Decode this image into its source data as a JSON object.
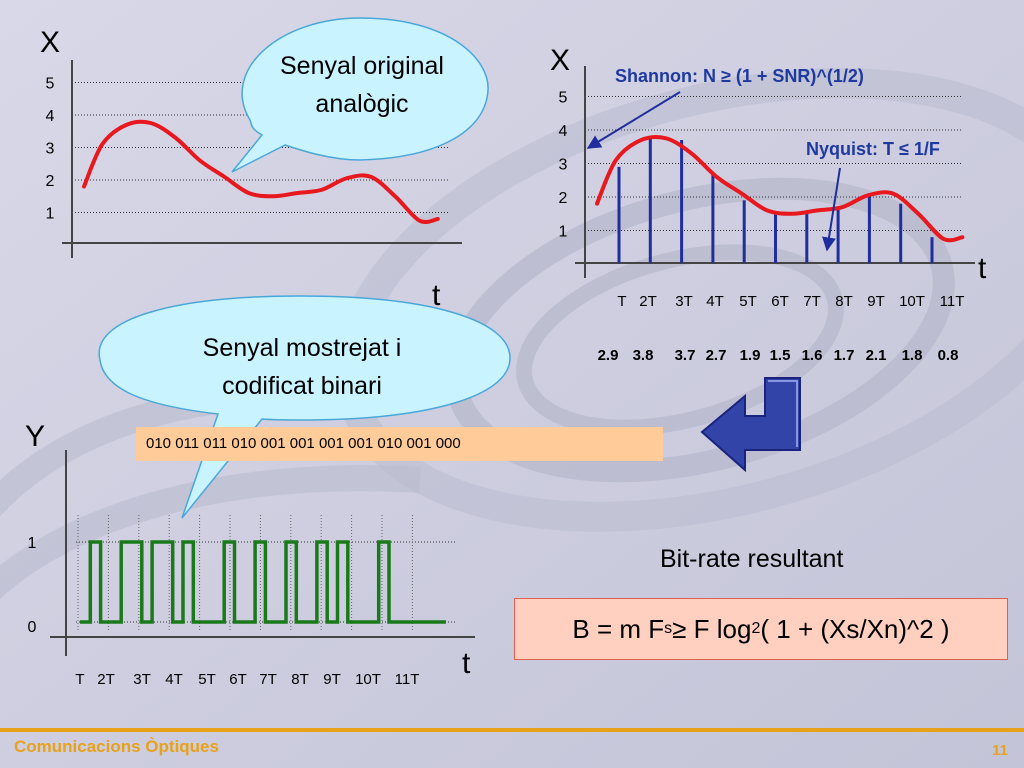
{
  "slide": {
    "footer_title": "Comunicacions Òptiques",
    "page_number": "11"
  },
  "callouts": {
    "original_line1": "Senyal original",
    "original_line2": "analògic",
    "sampled_line1": "Senyal mostrejat i",
    "sampled_line2": "codificat binari"
  },
  "annotations": {
    "shannon": "Shannon: N ≥ (1 + SNR)^(1/2)",
    "nyquist": "Nyquist: T ≤ 1/F"
  },
  "bitrate": {
    "title": "Bit-rate resultant",
    "formula_prefix": "B = m F",
    "formula_sub_s": "s",
    "formula_mid": " ≥ F log",
    "formula_sub_2": "2",
    "formula_suffix": " ( 1 + (Xs/Xn)^2 )"
  },
  "binary_codes": "010   011   011   010   001   001   001   001   010   001   000",
  "chart_data": [
    {
      "type": "line",
      "id": "analog-signal",
      "ylabel": "X",
      "xlabel": "t",
      "yticks": [
        "1",
        "2",
        "3",
        "4",
        "5"
      ],
      "ylim": [
        0,
        5.5
      ],
      "series": [
        {
          "color": "#e8191e",
          "x": [
            0,
            0.6,
            1.4,
            2.2,
            3.0,
            3.8,
            4.6,
            5.4,
            6.2,
            7.0,
            7.8,
            8.6,
            9.4,
            10.2,
            11.0,
            11.6
          ],
          "y": [
            1.8,
            3.1,
            3.7,
            3.75,
            3.3,
            2.6,
            2.1,
            1.6,
            1.5,
            1.6,
            1.7,
            2.05,
            2.1,
            1.5,
            0.75,
            0.8
          ]
        }
      ]
    },
    {
      "type": "line",
      "id": "sampled-signal",
      "ylabel": "X",
      "xlabel": "t",
      "yticks": [
        "1",
        "2",
        "3",
        "4",
        "5"
      ],
      "ylim": [
        0,
        5.5
      ],
      "x_ticks": [
        "T",
        "2T",
        "3T",
        "4T",
        "5T",
        "6T",
        "7T",
        "8T",
        "9T",
        "10T",
        "11T"
      ],
      "sample_values_text": [
        "2.9",
        "3.8",
        "3.7",
        "2.7",
        "1.9",
        "1.5",
        "1.6",
        "1.7",
        "2.1",
        "1.8",
        "0.8"
      ],
      "samples": [
        2.9,
        3.8,
        3.7,
        2.7,
        1.9,
        1.5,
        1.6,
        1.7,
        2.1,
        1.8,
        0.8
      ],
      "sample_color": "#1f2e9c",
      "series": [
        {
          "color": "#e8191e",
          "x": [
            0,
            0.6,
            1.4,
            2.2,
            3.0,
            3.8,
            4.6,
            5.4,
            6.2,
            7.0,
            7.8,
            8.6,
            9.4,
            10.2,
            11.0,
            11.6
          ],
          "y": [
            1.8,
            3.1,
            3.7,
            3.75,
            3.3,
            2.6,
            2.1,
            1.6,
            1.5,
            1.6,
            1.7,
            2.05,
            2.1,
            1.5,
            0.75,
            0.8
          ]
        }
      ]
    },
    {
      "type": "line",
      "id": "binary-signal",
      "ylabel": "Y",
      "xlabel": "t",
      "yticks": [
        "0",
        "1"
      ],
      "x_ticks": [
        "T",
        "2T",
        "3T",
        "4T",
        "5T",
        "6T",
        "7T",
        "8T",
        "9T",
        "10T",
        "11T"
      ],
      "bits": "010011011010001001001001010001000",
      "series": [
        {
          "color": "#1a7a1a"
        }
      ]
    }
  ]
}
